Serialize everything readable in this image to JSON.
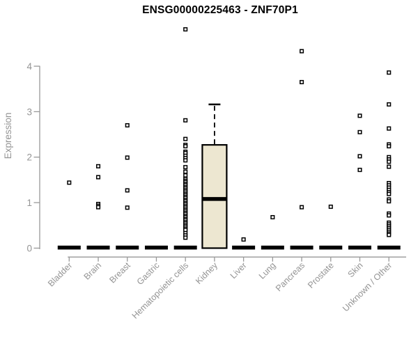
{
  "chart_data": {
    "type": "box",
    "title": "ENSG00000225463 - ZNF70P1",
    "xlabel": "",
    "ylabel": "Expression",
    "yticks": [
      0,
      1,
      2,
      3,
      4
    ],
    "ylim": [
      0,
      4.9
    ],
    "grid": false,
    "legend": "none",
    "colors": {
      "box_fill": "#EDE7D1",
      "box_stroke": "#000000",
      "median": "#000000",
      "collapsed_bar": "#000000",
      "point_stroke": "#000000",
      "point_fill": "#ffffff",
      "axis": "#999999",
      "tick_label": "#949494",
      "title": "#000000",
      "background": "#ffffff"
    },
    "categories": [
      "Bladder",
      "Brain",
      "Breast",
      "Gastric",
      "Hematopoietic cells",
      "Kidney",
      "Liver",
      "Lung",
      "Pancreas",
      "Prostate",
      "Skin",
      "Unknown / Other"
    ],
    "boxes": [
      {
        "category": "Bladder",
        "collapsed": true,
        "q1": 0,
        "median": 0,
        "q3": 0,
        "whisker_low": 0,
        "whisker_high": 0,
        "points": [
          1.44
        ]
      },
      {
        "category": "Brain",
        "collapsed": true,
        "q1": 0,
        "median": 0,
        "q3": 0,
        "whisker_low": 0,
        "whisker_high": 0,
        "points": [
          1.8,
          1.56,
          0.97,
          0.93,
          0.9
        ]
      },
      {
        "category": "Breast",
        "collapsed": true,
        "q1": 0,
        "median": 0,
        "q3": 0,
        "whisker_low": 0,
        "whisker_high": 0,
        "points": [
          2.7,
          1.99,
          1.27,
          0.89
        ]
      },
      {
        "category": "Gastric",
        "collapsed": true,
        "q1": 0,
        "median": 0,
        "q3": 0,
        "whisker_low": 0,
        "whisker_high": 0,
        "points": []
      },
      {
        "category": "Hematopoietic cells",
        "collapsed": true,
        "q1": 0,
        "median": 0,
        "q3": 0,
        "whisker_low": 0,
        "whisker_high": 0,
        "points": [
          4.81,
          2.81,
          2.4,
          2.27,
          2.24,
          2.12,
          2.09,
          2.03,
          1.98,
          1.93,
          1.78,
          1.68,
          1.6,
          1.52,
          1.48,
          1.45,
          1.41,
          1.38,
          1.34,
          1.31,
          1.27,
          1.24,
          1.2,
          1.17,
          1.13,
          1.1,
          1.06,
          1.03,
          0.99,
          0.96,
          0.92,
          0.89,
          0.85,
          0.82,
          0.78,
          0.75,
          0.71,
          0.68,
          0.64,
          0.61,
          0.57,
          0.54,
          0.5,
          0.47,
          0.43,
          0.4,
          0.33,
          0.28,
          0.23
        ]
      },
      {
        "category": "Kidney",
        "collapsed": false,
        "q1": 0,
        "median": 1.08,
        "q3": 2.27,
        "whisker_low": 0,
        "whisker_high": 3.16,
        "points": []
      },
      {
        "category": "Liver",
        "collapsed": true,
        "q1": 0,
        "median": 0,
        "q3": 0,
        "whisker_low": 0,
        "whisker_high": 0,
        "points": [
          0.19
        ]
      },
      {
        "category": "Lung",
        "collapsed": true,
        "q1": 0,
        "median": 0,
        "q3": 0,
        "whisker_low": 0,
        "whisker_high": 0,
        "points": [
          0.68
        ]
      },
      {
        "category": "Pancreas",
        "collapsed": true,
        "q1": 0,
        "median": 0,
        "q3": 0,
        "whisker_low": 0,
        "whisker_high": 0,
        "points": [
          4.33,
          3.65,
          0.9
        ]
      },
      {
        "category": "Prostate",
        "collapsed": true,
        "q1": 0,
        "median": 0,
        "q3": 0,
        "whisker_low": 0,
        "whisker_high": 0,
        "points": [
          0.91
        ]
      },
      {
        "category": "Skin",
        "collapsed": true,
        "q1": 0,
        "median": 0,
        "q3": 0,
        "whisker_low": 0,
        "whisker_high": 0,
        "points": [
          2.91,
          2.55,
          2.02,
          1.72
        ]
      },
      {
        "category": "Unknown / Other",
        "collapsed": true,
        "q1": 0,
        "median": 0,
        "q3": 0,
        "whisker_low": 0,
        "whisker_high": 0,
        "points": [
          3.86,
          3.16,
          2.63,
          2.28,
          2.24,
          2.0,
          1.95,
          1.9,
          1.79,
          1.43,
          1.38,
          1.33,
          1.28,
          1.23,
          1.19,
          1.07,
          1.03,
          0.76,
          0.72,
          0.56,
          0.52,
          0.48,
          0.44,
          0.4,
          0.36,
          0.32,
          0.29
        ]
      }
    ]
  }
}
